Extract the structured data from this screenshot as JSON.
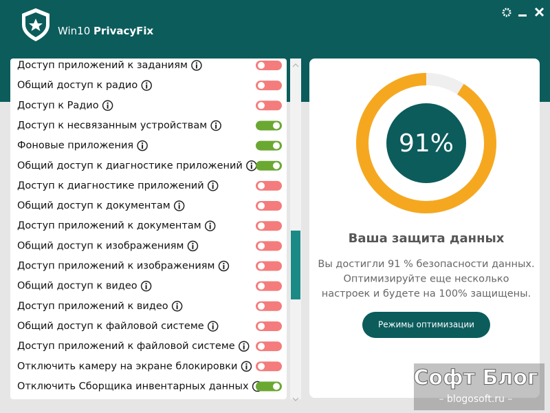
{
  "app": {
    "title_light": "Win10",
    "title_bold": "PrivacyFix"
  },
  "settings": [
    {
      "label": "Доступ приложений к заданиям",
      "on": false
    },
    {
      "label": "Общий доступ к радио",
      "on": false
    },
    {
      "label": "Доступ к Радио",
      "on": false
    },
    {
      "label": "Доступ к несвязанным устройствам",
      "on": true
    },
    {
      "label": "Фоновые приложения",
      "on": true
    },
    {
      "label": "Общий доступ к диагностике приложений",
      "on": true
    },
    {
      "label": "Доступ к диагностике приложений",
      "on": false
    },
    {
      "label": "Общий доступ к документам",
      "on": false
    },
    {
      "label": "Доступ приложений к документам",
      "on": false
    },
    {
      "label": "Общий доступ к изображениям",
      "on": false
    },
    {
      "label": "Доступ приложений к изображениям",
      "on": false
    },
    {
      "label": "Общий доступ к видео",
      "on": false
    },
    {
      "label": "Доступ приложений к видео",
      "on": false
    },
    {
      "label": "Общий доступ к файловой системе",
      "on": false
    },
    {
      "label": "Доступ приложений к файловой системе",
      "on": false
    },
    {
      "label": "Отключить камеру на экране блокировки",
      "on": false
    },
    {
      "label": "Отключить Сборщика инвентарных данных",
      "on": true
    }
  ],
  "protection": {
    "score": {
      "value": 91,
      "label": "91%"
    },
    "heading": "Ваша защита данных",
    "description": [
      "Вы достигли 91 % безопасности данных.",
      "Оптимизируйте еще несколько",
      "настроек и будете на 100% защищены."
    ],
    "button": "Режимы оптимизации"
  },
  "watermark": {
    "title": "Софт Блог",
    "site": "– blogosoft.ru –"
  }
}
